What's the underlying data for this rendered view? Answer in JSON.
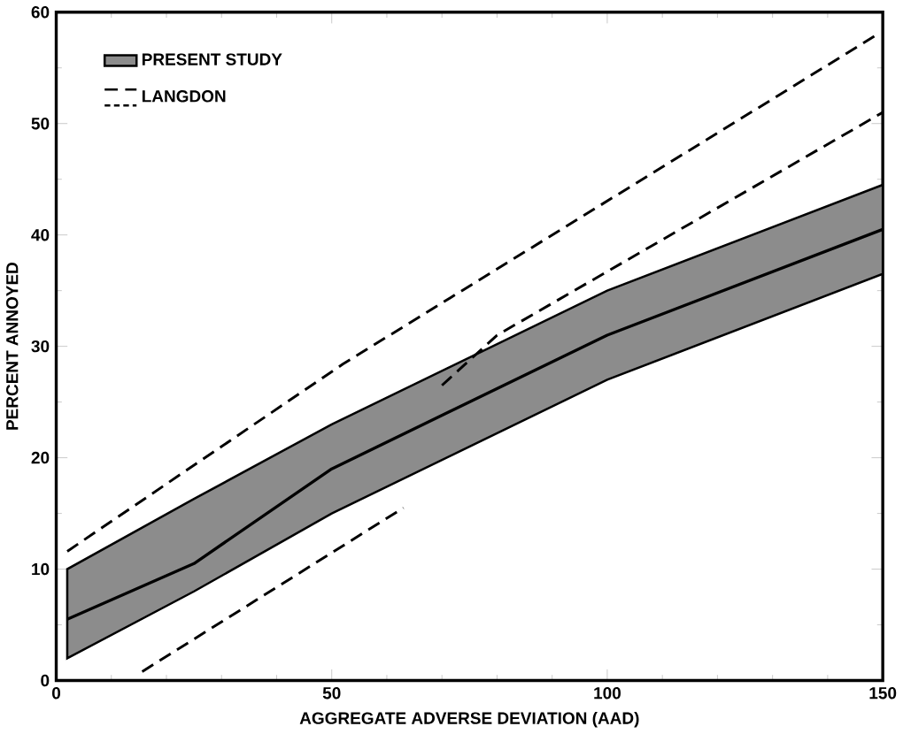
{
  "chart_data": {
    "type": "line",
    "xlabel": "AGGREGATE ADVERSE DEVIATION (AAD)",
    "ylabel": "PERCENT ANNOYED",
    "xlim": [
      0,
      150
    ],
    "ylim": [
      0,
      60
    ],
    "xticks": [
      0,
      50,
      100,
      150
    ],
    "yticks": [
      0,
      10,
      20,
      30,
      40,
      50,
      60
    ],
    "legend": "top left",
    "grid": false,
    "series": [
      {
        "type": "line",
        "name": "PRESENT STUDY",
        "color": "#000000",
        "x": [
          2,
          25,
          50,
          100,
          150
        ],
        "lower": [
          2,
          8,
          15,
          27,
          36.5
        ],
        "upper": [
          10,
          16.3,
          23,
          35,
          44.5
        ],
        "values": [
          5.5,
          10.5,
          19,
          31,
          40.5
        ],
        "line_style": "solid"
      },
      {
        "name": "LANGDON",
        "color": "#000000",
        "x": [
          2,
          52,
          149
        ],
        "values": [
          11.6,
          28.4,
          58
        ],
        "line_style": "dashed"
      },
      {
        "color": "#000000",
        "x": [
          70,
          80,
          150
        ],
        "values": [
          26.5,
          31,
          51
        ],
        "line_style": "dashed"
      },
      {
        "color": "#000000",
        "x": [
          15.6,
          63
        ],
        "values": [
          0.8,
          15.5
        ],
        "line_style": "dashed"
      }
    ]
  }
}
